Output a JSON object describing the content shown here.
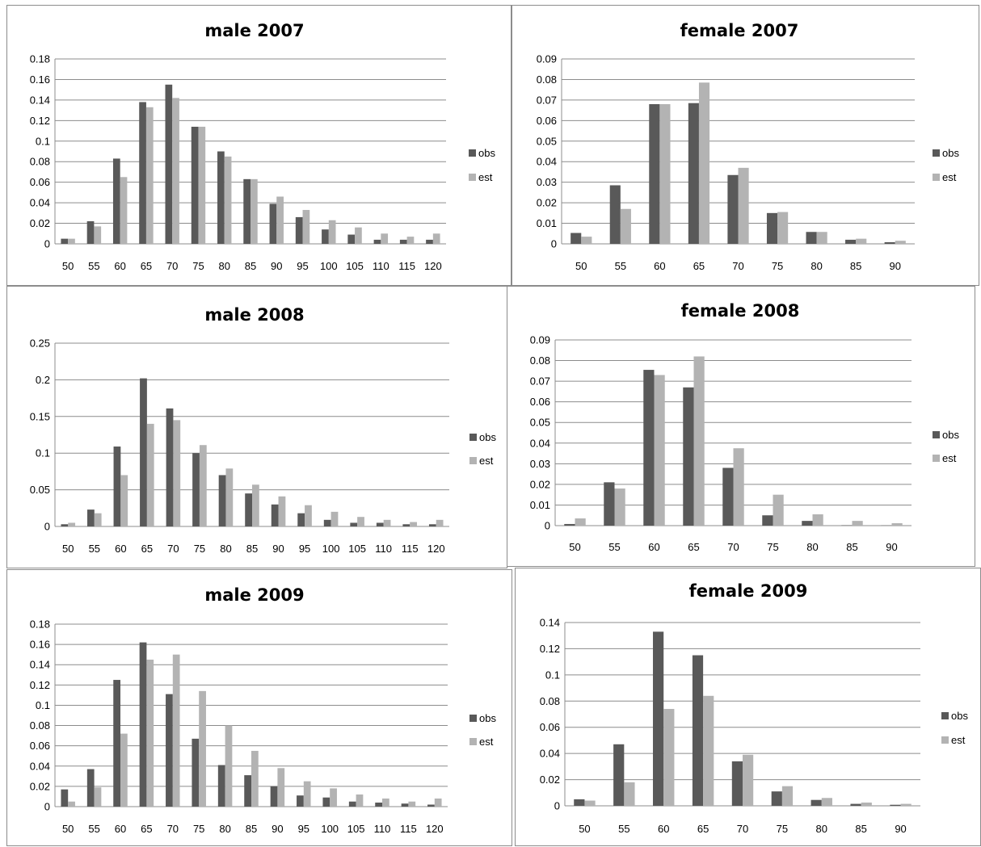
{
  "colors": {
    "obs": "#595959",
    "est": "#b3b3b3",
    "grid": "#8c8c8c"
  },
  "chart_data": [
    {
      "id": "m2007",
      "type": "bar",
      "title": "male 2007",
      "categories": [
        "50",
        "55",
        "60",
        "65",
        "70",
        "75",
        "80",
        "85",
        "90",
        "95",
        "100",
        "105",
        "110",
        "115",
        "120"
      ],
      "series": [
        {
          "name": "obs",
          "values": [
            0.005,
            0.022,
            0.083,
            0.138,
            0.155,
            0.114,
            0.09,
            0.063,
            0.039,
            0.026,
            0.014,
            0.009,
            0.004,
            0.004,
            0.004
          ]
        },
        {
          "name": "est",
          "values": [
            0.005,
            0.017,
            0.065,
            0.133,
            0.142,
            0.114,
            0.085,
            0.063,
            0.046,
            0.033,
            0.023,
            0.016,
            0.01,
            0.007,
            0.01
          ]
        }
      ],
      "yticks": [
        "0",
        "0.02",
        "0.04",
        "0.06",
        "0.08",
        "0.1",
        "0.12",
        "0.14",
        "0.16",
        "0.18"
      ],
      "ylim": [
        0,
        0.18
      ],
      "legend": "right",
      "grid": true
    },
    {
      "id": "f2007",
      "type": "bar",
      "title": "female 2007",
      "categories": [
        "50",
        "55",
        "60",
        "65",
        "70",
        "75",
        "80",
        "85",
        "90"
      ],
      "series": [
        {
          "name": "obs",
          "values": [
            0.0053,
            0.0285,
            0.068,
            0.0685,
            0.0335,
            0.015,
            0.0058,
            0.002,
            0.0008
          ]
        },
        {
          "name": "est",
          "values": [
            0.0035,
            0.017,
            0.068,
            0.0785,
            0.037,
            0.0155,
            0.0058,
            0.0025,
            0.0015
          ]
        }
      ],
      "yticks": [
        "0",
        "0.01",
        "0.02",
        "0.03",
        "0.04",
        "0.05",
        "0.06",
        "0.07",
        "0.08",
        "0.09"
      ],
      "ylim": [
        0,
        0.09
      ],
      "legend": "right",
      "grid": true
    },
    {
      "id": "m2008",
      "type": "bar",
      "title": "male 2008",
      "categories": [
        "50",
        "55",
        "60",
        "65",
        "70",
        "75",
        "80",
        "85",
        "90",
        "95",
        "100",
        "105",
        "110",
        "115",
        "120"
      ],
      "series": [
        {
          "name": "obs",
          "values": [
            0.003,
            0.023,
            0.109,
            0.202,
            0.161,
            0.1,
            0.07,
            0.045,
            0.03,
            0.018,
            0.009,
            0.005,
            0.005,
            0.003,
            0.003
          ]
        },
        {
          "name": "est",
          "values": [
            0.005,
            0.018,
            0.07,
            0.14,
            0.145,
            0.111,
            0.079,
            0.057,
            0.041,
            0.029,
            0.02,
            0.013,
            0.009,
            0.006,
            0.009
          ]
        }
      ],
      "yticks": [
        "0",
        "0.05",
        "0.1",
        "0.15",
        "0.2",
        "0.25"
      ],
      "ylim": [
        0,
        0.25
      ],
      "legend": "right",
      "grid": true
    },
    {
      "id": "f2008",
      "type": "bar",
      "title": "female 2008",
      "categories": [
        "50",
        "55",
        "60",
        "65",
        "70",
        "75",
        "80",
        "85",
        "90"
      ],
      "series": [
        {
          "name": "obs",
          "values": [
            0.0008,
            0.021,
            0.0755,
            0.067,
            0.028,
            0.005,
            0.0023,
            0.0002,
            0.0001
          ]
        },
        {
          "name": "est",
          "values": [
            0.0035,
            0.018,
            0.073,
            0.082,
            0.0375,
            0.015,
            0.0055,
            0.0023,
            0.0012
          ]
        }
      ],
      "yticks": [
        "0",
        "0.01",
        "0.02",
        "0.03",
        "0.04",
        "0.05",
        "0.06",
        "0.07",
        "0.08",
        "0.09"
      ],
      "ylim": [
        0,
        0.09
      ],
      "legend": "right",
      "grid": true
    },
    {
      "id": "m2009",
      "type": "bar",
      "title": "male 2009",
      "categories": [
        "50",
        "55",
        "60",
        "65",
        "70",
        "75",
        "80",
        "85",
        "90",
        "95",
        "100",
        "105",
        "110",
        "115",
        "120"
      ],
      "series": [
        {
          "name": "obs",
          "values": [
            0.017,
            0.037,
            0.125,
            0.162,
            0.111,
            0.067,
            0.041,
            0.031,
            0.02,
            0.011,
            0.009,
            0.005,
            0.004,
            0.003,
            0.002
          ]
        },
        {
          "name": "est",
          "values": [
            0.005,
            0.019,
            0.072,
            0.145,
            0.15,
            0.114,
            0.08,
            0.055,
            0.038,
            0.025,
            0.018,
            0.012,
            0.008,
            0.005,
            0.008
          ]
        }
      ],
      "yticks": [
        "0",
        "0.02",
        "0.04",
        "0.06",
        "0.08",
        "0.1",
        "0.12",
        "0.14",
        "0.16",
        "0.18"
      ],
      "ylim": [
        0,
        0.18
      ],
      "legend": "right",
      "grid": true
    },
    {
      "id": "f2009",
      "type": "bar",
      "title": "female 2009",
      "categories": [
        "50",
        "55",
        "60",
        "65",
        "70",
        "75",
        "80",
        "85",
        "90"
      ],
      "series": [
        {
          "name": "obs",
          "values": [
            0.005,
            0.047,
            0.133,
            0.115,
            0.034,
            0.011,
            0.0045,
            0.0015,
            0.0008
          ]
        },
        {
          "name": "est",
          "values": [
            0.004,
            0.018,
            0.074,
            0.084,
            0.039,
            0.015,
            0.006,
            0.0025,
            0.0015
          ]
        }
      ],
      "yticks": [
        "0",
        "0.02",
        "0.04",
        "0.06",
        "0.08",
        "0.1",
        "0.12",
        "0.14"
      ],
      "ylim": [
        0,
        0.14
      ],
      "legend": "right",
      "grid": true
    }
  ]
}
